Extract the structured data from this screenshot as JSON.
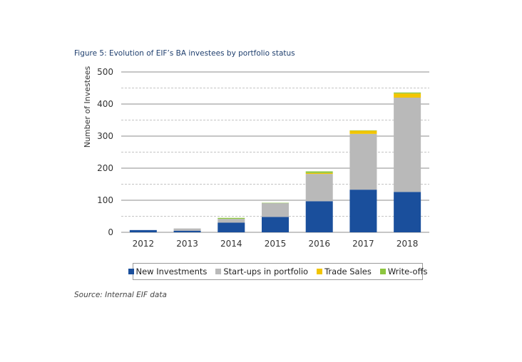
{
  "figure_title": "Figure 5: Evolution of EIF’s BA investees by portfolio status",
  "source": "Source: Internal EIF data",
  "chart_data": {
    "type": "bar",
    "stacked": true,
    "title": "Figure 5: Evolution of EIF’s BA investees by portfolio status",
    "xlabel": "",
    "ylabel": "Number of Investees",
    "ylim": [
      0,
      500
    ],
    "yticks": [
      0,
      100,
      200,
      300,
      400,
      500
    ],
    "minor_gridlines": [
      50,
      150,
      250,
      350,
      450
    ],
    "grid": true,
    "legend_position": "bottom",
    "categories": [
      "2012",
      "2013",
      "2014",
      "2015",
      "2016",
      "2017",
      "2018"
    ],
    "series": [
      {
        "name": "New Investments",
        "color": "#1a4f9c",
        "values": [
          7,
          5,
          30,
          48,
          97,
          133,
          126
        ]
      },
      {
        "name": "Start-ups in portfolio",
        "color": "#b9b9b9",
        "values": [
          0,
          7,
          12,
          43,
          85,
          174,
          294
        ]
      },
      {
        "name": "Trade Sales",
        "color": "#f2c500",
        "values": [
          0,
          0,
          0,
          0,
          3,
          10,
          13
        ]
      },
      {
        "name": "Write-offs",
        "color": "#8dc63f",
        "values": [
          0,
          0,
          3,
          1,
          5,
          1,
          3
        ]
      }
    ]
  }
}
